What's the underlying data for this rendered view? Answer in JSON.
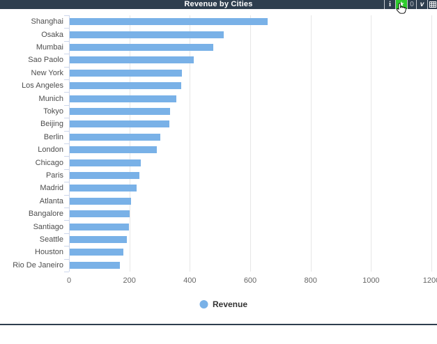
{
  "header": {
    "title": "Revenue by Cities",
    "toolbar": {
      "info_label": "i",
      "favorite_label": "★",
      "count_label": "0",
      "version_label": "v",
      "data_table_icon": "table-grid-icon"
    }
  },
  "colors": {
    "header_bg": "#2e3e4e",
    "bar": "#79b1e7",
    "gridline": "#e6e6e6",
    "axis_line": "#ccd6eb",
    "category_label": "#4d4d4d",
    "tick_label": "#666666",
    "favorite_bg": "#2ecc2e",
    "divider": "#2e3e4e"
  },
  "chart_data": {
    "type": "bar",
    "orientation": "horizontal",
    "title": "Revenue by Cities",
    "series_name": "Revenue",
    "categories": [
      "Shanghai",
      "Osaka",
      "Mumbai",
      "Sao Paolo",
      "New York",
      "Los Angeles",
      "Munich",
      "Tokyo",
      "Beijing",
      "Berlin",
      "London",
      "Chicago",
      "Paris",
      "Madrid",
      "Atlanta",
      "Bangalore",
      "Santiago",
      "Seattle",
      "Houston",
      "Rio De Janeiro"
    ],
    "values": [
      655,
      510,
      475,
      410,
      372,
      370,
      354,
      333,
      330,
      301,
      288,
      236,
      231,
      222,
      204,
      198,
      196,
      189,
      177,
      167
    ],
    "xlim": [
      0,
      1200
    ],
    "xticks": [
      0,
      200,
      400,
      600,
      800,
      1000,
      1200
    ],
    "grid": true,
    "legend_position": "bottom"
  },
  "legend": {
    "items": [
      {
        "label": "Revenue",
        "color": "#79b1e7"
      }
    ]
  }
}
